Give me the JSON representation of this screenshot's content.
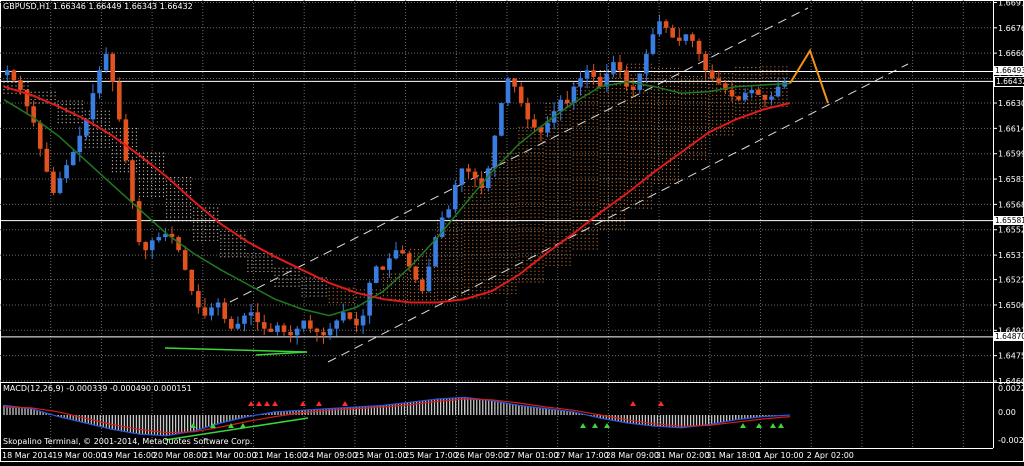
{
  "header": {
    "symbol": "GBPUSD,H1",
    "ohlc": "1.66346 1.66449 1.66343 1.66432"
  },
  "macd_header": "MACD(12,26,9) -0.000339 -0.000490 0.000151",
  "footer": "Skopalino Terminal, © 2001-2014, MetaQuotes Software Corp.",
  "colors": {
    "background": "#000000",
    "grid": "#6b6b6b",
    "bull_candle": "#3a7de0",
    "bear_candle": "#e0521f",
    "ma_red": "#e11b1b",
    "ma_green": "#1f7a1f",
    "cloud_light": "#d8c6b8",
    "cloud_orange": "#c87a3a",
    "projection": "#f0921a",
    "macd_hist": "#c8c8c8",
    "macd_line": "#2a56d8",
    "signal_line": "#d21e1e",
    "divergence_green": "#3ad53a"
  },
  "chart_data": [
    {
      "type": "candlestick",
      "title": "GBPUSD,H1",
      "ylim": [
        1.646,
        1.6693
      ],
      "y_ticks": [
        "1.66915",
        "1.66760",
        "1.66605",
        "1.66450",
        "1.66300",
        "1.66145",
        "1.65990",
        "1.65835",
        "1.65680",
        "1.65525",
        "1.65370",
        "1.65220",
        "1.65065",
        "1.64910",
        "1.64755",
        "1.64600"
      ],
      "x_ticks": [
        "18 Mar 2014",
        "19 Mar 00:00",
        "19 Mar 16:00",
        "20 Mar 08:00",
        "21 Mar 00:00",
        "21 Mar 16:00",
        "24 Mar 09:00",
        "25 Mar 01:00",
        "25 Mar 17:00",
        "26 Mar 09:00",
        "27 Mar 01:00",
        "27 Mar 17:00",
        "28 Mar 09:00",
        "31 Mar 02:00",
        "31 Mar 18:00",
        "1 Apr 10:00",
        "2 Apr 02:00"
      ],
      "horizontal_levels": [
        {
          "label": "1.66493",
          "value": 1.66493,
          "style": "white-tag"
        },
        {
          "label": "1.66432",
          "value": 1.66432,
          "style": "dark-tag"
        },
        {
          "label": "1.65581",
          "value": 1.65581,
          "style": "white-tag"
        },
        {
          "label": "1.64870",
          "value": 1.6487,
          "style": "white-tag"
        }
      ],
      "close_path": [
        1.665,
        1.6644,
        1.6638,
        1.6628,
        1.6618,
        1.6602,
        1.6588,
        1.6575,
        1.6584,
        1.6592,
        1.66,
        1.661,
        1.662,
        1.6636,
        1.665,
        1.666,
        1.6643,
        1.662,
        1.6595,
        1.657,
        1.6545,
        1.654,
        1.6546,
        1.6548,
        1.655,
        1.6548,
        1.654,
        1.6528,
        1.6515,
        1.6505,
        1.65,
        1.6505,
        1.6508,
        1.6498,
        1.6492,
        1.6495,
        1.65,
        1.6502,
        1.6496,
        1.6492,
        1.649,
        1.6494,
        1.649,
        1.6488,
        1.6492,
        1.6497,
        1.6492,
        1.649,
        1.6488,
        1.6492,
        1.6497,
        1.6502,
        1.6498,
        1.6494,
        1.65,
        1.652,
        1.653,
        1.6528,
        1.6535,
        1.654,
        1.6538,
        1.653,
        1.6522,
        1.6515,
        1.653,
        1.6548,
        1.656,
        1.6565,
        1.658,
        1.659,
        1.6588,
        1.6584,
        1.6578,
        1.659,
        1.661,
        1.663,
        1.6645,
        1.664,
        1.663,
        1.662,
        1.6615,
        1.6612,
        1.6618,
        1.6625,
        1.6632,
        1.663,
        1.664,
        1.6645,
        1.665,
        1.6646,
        1.664,
        1.6648,
        1.6655,
        1.665,
        1.664,
        1.6638,
        1.6648,
        1.666,
        1.6672,
        1.668,
        1.6676,
        1.667,
        1.6668,
        1.6672,
        1.6668,
        1.666,
        1.665,
        1.6645,
        1.6642,
        1.6638,
        1.6634,
        1.6632,
        1.6636,
        1.6638,
        1.6635,
        1.6632,
        1.6634,
        1.664,
        1.6643
      ],
      "ma_red": [
        1.664,
        1.6635,
        1.6628,
        1.662,
        1.661,
        1.6598,
        1.6585,
        1.657,
        1.6556,
        1.6545,
        1.6536,
        1.6528,
        1.652,
        1.6514,
        1.651,
        1.6508,
        1.6508,
        1.651,
        1.6515,
        1.6525,
        1.6538,
        1.655,
        1.6563,
        1.6575,
        1.6588,
        1.66,
        1.6612,
        1.662,
        1.6626,
        1.663
      ],
      "ma_green": [
        1.6632,
        1.6622,
        1.661,
        1.6595,
        1.658,
        1.6565,
        1.655,
        1.6538,
        1.6528,
        1.6519,
        1.651,
        1.6504,
        1.65,
        1.6505,
        1.6515,
        1.653,
        1.6548,
        1.6568,
        1.6588,
        1.6605,
        1.6618,
        1.663,
        1.664,
        1.6643,
        1.664,
        1.6636,
        1.6637,
        1.664,
        1.6641,
        1.6642
      ],
      "projection_path": [
        [
          0,
          1.6642
        ],
        [
          1,
          1.6662
        ],
        [
          2,
          1.663
        ]
      ]
    },
    {
      "type": "bar",
      "title": "MACD(12,26,9)",
      "series": [
        {
          "name": "MACD",
          "values": [
            0.00012,
            8e-05,
            -2e-05,
            -0.0001,
            -0.00018,
            -0.00024,
            -0.00026,
            -0.0002,
            -0.0001,
            -2e-05,
            4e-05,
            6e-05,
            8e-05,
            0.0001,
            0.00012,
            0.00016,
            0.0002,
            0.00022,
            0.00018,
            0.00012,
            8e-05,
            4e-05,
            -4e-05,
            -0.0001,
            -0.00014,
            -0.00016,
            -0.00012,
            -6e-05,
            -2e-05,
            0.0
          ]
        },
        {
          "name": "Signal",
          "values": [
            0.0001,
            9e-05,
            4e-05,
            -4e-05,
            -0.00012,
            -0.00018,
            -0.00022,
            -0.00021,
            -0.00015,
            -8e-05,
            -2e-05,
            3e-05,
            6e-05,
            8e-05,
            0.0001,
            0.00013,
            0.00017,
            0.0002,
            0.00019,
            0.00015,
            0.0001,
            6e-05,
            0.0,
            -6e-05,
            -0.00011,
            -0.00014,
            -0.00013,
            -9e-05,
            -5e-05,
            -2e-05
          ]
        }
      ],
      "ylim": [
        -0.0004,
        0.0004
      ],
      "y_ticks": [
        "0.002274",
        "0.00",
        "-0.002393"
      ]
    }
  ]
}
